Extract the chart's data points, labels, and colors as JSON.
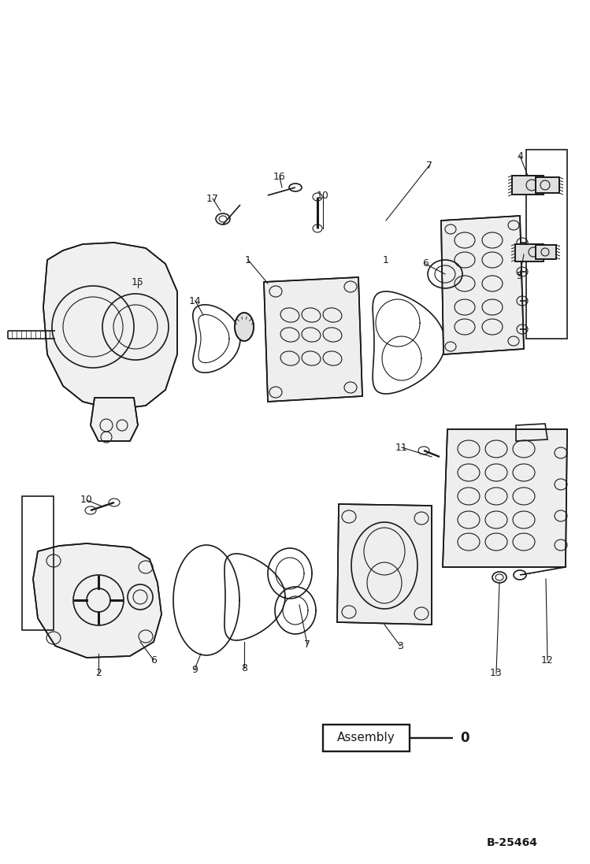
{
  "bg_color": "#ffffff",
  "lc": "#1a1a1a",
  "lw_main": 1.2,
  "lw_thin": 0.8,
  "figsize": [
    7.49,
    10.97
  ],
  "dpi": 100,
  "assembly_label": "Assembly",
  "part0_label": "0",
  "bottom_ref": "B-25464"
}
